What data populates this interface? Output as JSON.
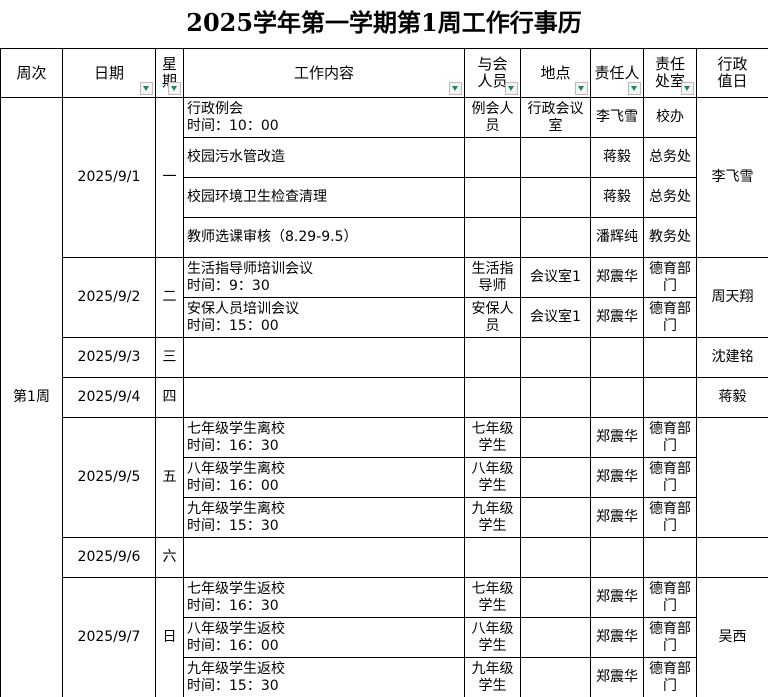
{
  "title": "2025学年第一学期第1周工作行事历",
  "headers": [
    "周次",
    "日期",
    "星期",
    "工作内容",
    "与会人员",
    "地点",
    "责任人",
    "责任处室",
    "行政值日"
  ],
  "filter_columns": [
    1,
    2,
    3,
    4,
    5,
    6,
    7
  ],
  "week": "第1周",
  "days": [
    {
      "date": "2025/9/1",
      "weekday": "一",
      "duty": "李飞雪",
      "items": [
        {
          "content": "行政例会",
          "time": "时间：10：00",
          "attendees": "例会人员",
          "location": "行政会议室",
          "owner": "李飞雪",
          "dept": "校办"
        },
        {
          "content": "校园污水管改造",
          "time": "",
          "attendees": "",
          "location": "",
          "owner": "蒋毅",
          "dept": "总务处"
        },
        {
          "content": "校园环境卫生检查清理",
          "time": "",
          "attendees": "",
          "location": "",
          "owner": "蒋毅",
          "dept": "总务处"
        },
        {
          "content": "教师选课审核（8.29-9.5）",
          "time": "",
          "attendees": "",
          "location": "",
          "owner": "潘辉纯",
          "dept": "教务处"
        }
      ]
    },
    {
      "date": "2025/9/2",
      "weekday": "二",
      "duty": "周天翔",
      "items": [
        {
          "content": "生活指导师培训会议",
          "time": "时间：9：30",
          "attendees": "生活指导师",
          "location": "会议室1",
          "owner": "郑震华",
          "dept": "德育部门"
        },
        {
          "content": "安保人员培训会议",
          "time": "时间：15：00",
          "attendees": "安保人员",
          "location": "会议室1",
          "owner": "郑震华",
          "dept": "德育部门"
        }
      ]
    },
    {
      "date": "2025/9/3",
      "weekday": "三",
      "duty": "沈建铭",
      "items": []
    },
    {
      "date": "2025/9/4",
      "weekday": "四",
      "duty": "蒋毅",
      "items": []
    },
    {
      "date": "2025/9/5",
      "weekday": "五",
      "duty": "",
      "items": [
        {
          "content": "七年级学生离校",
          "time": "时间：16：30",
          "attendees": "七年级学生",
          "location": "",
          "owner": "郑震华",
          "dept": "德育部门"
        },
        {
          "content": "八年级学生离校",
          "time": "时间：16：00",
          "attendees": "八年级学生",
          "location": "",
          "owner": "郑震华",
          "dept": "德育部门"
        },
        {
          "content": "九年级学生离校",
          "time": "时间：15：30",
          "attendees": "九年级学生",
          "location": "",
          "owner": "郑震华",
          "dept": "德育部门"
        }
      ]
    },
    {
      "date": "2025/9/6",
      "weekday": "六",
      "duty": "",
      "items": []
    },
    {
      "date": "2025/9/7",
      "weekday": "日",
      "duty": "吴西",
      "items": [
        {
          "content": "七年级学生返校",
          "time": "时间：16：30",
          "attendees": "七年级学生",
          "location": "",
          "owner": "郑震华",
          "dept": "德育部门"
        },
        {
          "content": "八年级学生返校",
          "time": "时间：16：00",
          "attendees": "八年级学生",
          "location": "",
          "owner": "郑震华",
          "dept": "德育部门"
        },
        {
          "content": "九年级学生返校",
          "time": "时间：15：30",
          "attendees": "九年级学生",
          "location": "",
          "owner": "郑震华",
          "dept": "德育部门"
        }
      ]
    }
  ]
}
